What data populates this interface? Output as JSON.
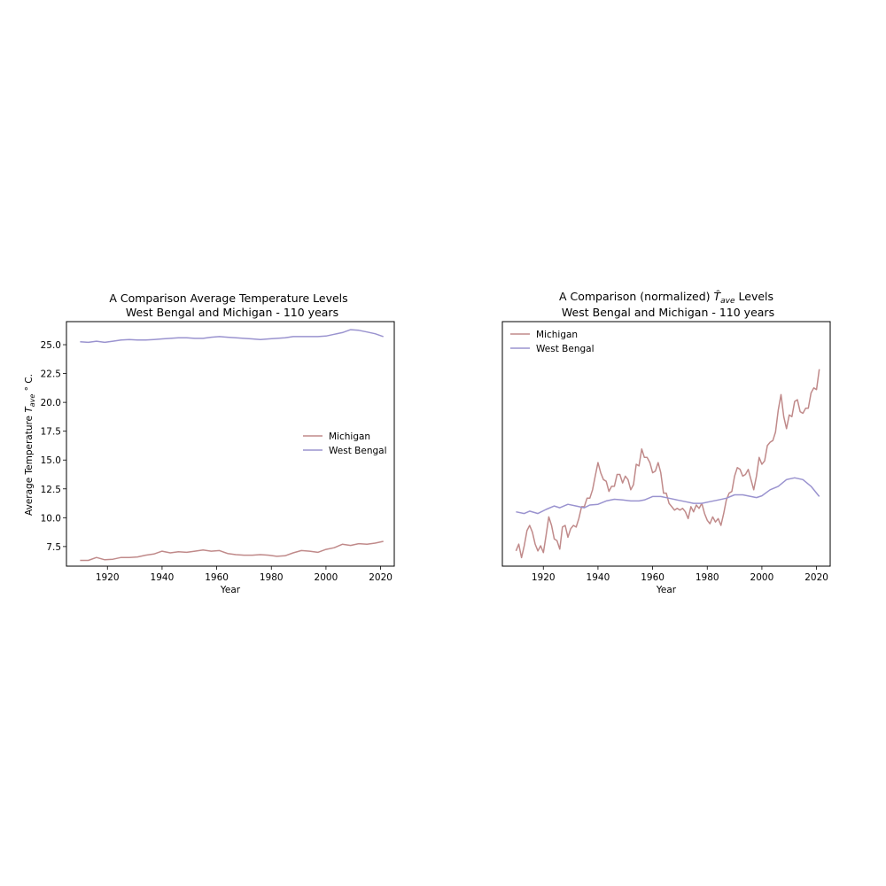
{
  "colors": {
    "michigan": "#c08a8a",
    "west_bengal": "#9a93cf"
  },
  "chart_data": [
    {
      "type": "line",
      "title_line1": "A Comparison Average Temperature Levels",
      "title_line2": "West Bengal and Michigan - 110 years",
      "xlabel": "Year",
      "ylabel": "Average Temperature T_ave ° C.",
      "ylabel_prefix": "Average Temperature ",
      "ylabel_symbol": "T",
      "ylabel_sub": "ave",
      "ylabel_suffix": " ° C.",
      "xlim": [
        1905,
        2025
      ],
      "ylim": [
        5.8,
        27.0
      ],
      "xticks": [
        1920,
        1940,
        1960,
        1980,
        2000,
        2020
      ],
      "xtick_labels": [
        "1920",
        "1940",
        "1960",
        "1980",
        "2000",
        "2020"
      ],
      "yticks": [
        7.5,
        10.0,
        12.5,
        15.0,
        17.5,
        20.0,
        22.5,
        25.0
      ],
      "ytick_labels": [
        "7.5",
        "10.0",
        "12.5",
        "15.0",
        "17.5",
        "20.0",
        "22.5",
        "25.0"
      ],
      "legend_position": "center-right",
      "series": [
        {
          "name": "Michigan",
          "color_key": "michigan",
          "points": [
            [
              1910,
              6.3
            ],
            [
              1913,
              6.3
            ],
            [
              1916,
              6.55
            ],
            [
              1919,
              6.35
            ],
            [
              1922,
              6.4
            ],
            [
              1925,
              6.55
            ],
            [
              1928,
              6.55
            ],
            [
              1931,
              6.6
            ],
            [
              1934,
              6.75
            ],
            [
              1937,
              6.85
            ],
            [
              1940,
              7.1
            ],
            [
              1943,
              6.95
            ],
            [
              1946,
              7.05
            ],
            [
              1949,
              7.0
            ],
            [
              1952,
              7.1
            ],
            [
              1955,
              7.2
            ],
            [
              1958,
              7.1
            ],
            [
              1961,
              7.15
            ],
            [
              1964,
              6.9
            ],
            [
              1967,
              6.8
            ],
            [
              1970,
              6.75
            ],
            [
              1973,
              6.75
            ],
            [
              1976,
              6.8
            ],
            [
              1979,
              6.75
            ],
            [
              1982,
              6.65
            ],
            [
              1985,
              6.7
            ],
            [
              1988,
              6.95
            ],
            [
              1991,
              7.15
            ],
            [
              1994,
              7.1
            ],
            [
              1997,
              7.0
            ],
            [
              2000,
              7.25
            ],
            [
              2003,
              7.4
            ],
            [
              2006,
              7.7
            ],
            [
              2009,
              7.6
            ],
            [
              2012,
              7.75
            ],
            [
              2015,
              7.7
            ],
            [
              2018,
              7.8
            ],
            [
              2021,
              7.95
            ]
          ]
        },
        {
          "name": "West Bengal",
          "color_key": "west_bengal",
          "points": [
            [
              1910,
              25.25
            ],
            [
              1913,
              25.2
            ],
            [
              1916,
              25.3
            ],
            [
              1919,
              25.2
            ],
            [
              1922,
              25.3
            ],
            [
              1925,
              25.4
            ],
            [
              1928,
              25.45
            ],
            [
              1931,
              25.4
            ],
            [
              1934,
              25.4
            ],
            [
              1937,
              25.45
            ],
            [
              1940,
              25.5
            ],
            [
              1943,
              25.55
            ],
            [
              1946,
              25.6
            ],
            [
              1949,
              25.6
            ],
            [
              1952,
              25.55
            ],
            [
              1955,
              25.55
            ],
            [
              1958,
              25.65
            ],
            [
              1961,
              25.7
            ],
            [
              1964,
              25.65
            ],
            [
              1967,
              25.6
            ],
            [
              1970,
              25.55
            ],
            [
              1973,
              25.5
            ],
            [
              1976,
              25.45
            ],
            [
              1979,
              25.5
            ],
            [
              1982,
              25.55
            ],
            [
              1985,
              25.6
            ],
            [
              1988,
              25.7
            ],
            [
              1991,
              25.7
            ],
            [
              1994,
              25.7
            ],
            [
              1997,
              25.7
            ],
            [
              2000,
              25.75
            ],
            [
              2003,
              25.9
            ],
            [
              2006,
              26.05
            ],
            [
              2009,
              26.3
            ],
            [
              2012,
              26.25
            ],
            [
              2015,
              26.1
            ],
            [
              2018,
              25.95
            ],
            [
              2021,
              25.7
            ]
          ]
        }
      ]
    },
    {
      "type": "line",
      "title_line1_prefix": "A Comparison (normalized) ",
      "title_line1_symbol": "T̂",
      "title_line1_sub": "ave",
      "title_line1_suffix": " Levels",
      "title_line2": "West Bengal and Michigan - 110 years",
      "xlabel": "Year",
      "xlim": [
        1905,
        2025
      ],
      "ylim": [
        -3.1,
        4.1
      ],
      "xticks": [
        1920,
        1940,
        1960,
        1980,
        2000,
        2020
      ],
      "xtick_labels": [
        "1920",
        "1940",
        "1960",
        "1980",
        "2000",
        "2020"
      ],
      "yticks": [],
      "legend_position": "top-left",
      "series": [
        {
          "name": "Michigan",
          "color_key": "michigan",
          "points": [
            [
              1910,
              -2.65
            ],
            [
              1911,
              -2.45
            ],
            [
              1912,
              -2.85
            ],
            [
              1913,
              -2.5
            ],
            [
              1914,
              -2.05
            ],
            [
              1915,
              -1.9
            ],
            [
              1916,
              -2.1
            ],
            [
              1917,
              -2.45
            ],
            [
              1918,
              -2.65
            ],
            [
              1919,
              -2.5
            ],
            [
              1920,
              -2.7
            ],
            [
              1921,
              -2.2
            ],
            [
              1922,
              -1.65
            ],
            [
              1923,
              -1.9
            ],
            [
              1924,
              -2.3
            ],
            [
              1925,
              -2.35
            ],
            [
              1926,
              -2.6
            ],
            [
              1927,
              -1.95
            ],
            [
              1928,
              -1.9
            ],
            [
              1929,
              -2.25
            ],
            [
              1930,
              -2.0
            ],
            [
              1931,
              -1.9
            ],
            [
              1932,
              -1.95
            ],
            [
              1933,
              -1.7
            ],
            [
              1934,
              -1.35
            ],
            [
              1935,
              -1.35
            ],
            [
              1936,
              -1.1
            ],
            [
              1937,
              -1.1
            ],
            [
              1938,
              -0.85
            ],
            [
              1939,
              -0.45
            ],
            [
              1940,
              -0.05
            ],
            [
              1941,
              -0.35
            ],
            [
              1942,
              -0.55
            ],
            [
              1943,
              -0.6
            ],
            [
              1944,
              -0.9
            ],
            [
              1945,
              -0.75
            ],
            [
              1946,
              -0.75
            ],
            [
              1947,
              -0.4
            ],
            [
              1948,
              -0.4
            ],
            [
              1949,
              -0.65
            ],
            [
              1950,
              -0.45
            ],
            [
              1951,
              -0.55
            ],
            [
              1952,
              -0.85
            ],
            [
              1953,
              -0.7
            ],
            [
              1954,
              -0.1
            ],
            [
              1955,
              -0.15
            ],
            [
              1956,
              0.35
            ],
            [
              1957,
              0.1
            ],
            [
              1958,
              0.1
            ],
            [
              1959,
              -0.05
            ],
            [
              1960,
              -0.35
            ],
            [
              1961,
              -0.3
            ],
            [
              1962,
              -0.05
            ],
            [
              1963,
              -0.35
            ],
            [
              1964,
              -0.95
            ],
            [
              1965,
              -0.95
            ],
            [
              1966,
              -1.25
            ],
            [
              1967,
              -1.35
            ],
            [
              1968,
              -1.45
            ],
            [
              1969,
              -1.4
            ],
            [
              1970,
              -1.45
            ],
            [
              1971,
              -1.4
            ],
            [
              1972,
              -1.5
            ],
            [
              1973,
              -1.7
            ],
            [
              1974,
              -1.35
            ],
            [
              1975,
              -1.5
            ],
            [
              1976,
              -1.3
            ],
            [
              1977,
              -1.4
            ],
            [
              1978,
              -1.25
            ],
            [
              1979,
              -1.55
            ],
            [
              1980,
              -1.75
            ],
            [
              1981,
              -1.85
            ],
            [
              1982,
              -1.65
            ],
            [
              1983,
              -1.8
            ],
            [
              1984,
              -1.7
            ],
            [
              1985,
              -1.9
            ],
            [
              1986,
              -1.55
            ],
            [
              1987,
              -1.15
            ],
            [
              1988,
              -0.95
            ],
            [
              1989,
              -0.9
            ],
            [
              1990,
              -0.45
            ],
            [
              1991,
              -0.2
            ],
            [
              1992,
              -0.25
            ],
            [
              1993,
              -0.45
            ],
            [
              1994,
              -0.4
            ],
            [
              1995,
              -0.25
            ],
            [
              1996,
              -0.55
            ],
            [
              1997,
              -0.85
            ],
            [
              1998,
              -0.45
            ],
            [
              1999,
              0.1
            ],
            [
              2000,
              -0.1
            ],
            [
              2001,
              0.0
            ],
            [
              2002,
              0.45
            ],
            [
              2003,
              0.55
            ],
            [
              2004,
              0.6
            ],
            [
              2005,
              0.85
            ],
            [
              2006,
              1.5
            ],
            [
              2007,
              1.95
            ],
            [
              2008,
              1.3
            ],
            [
              2009,
              0.95
            ],
            [
              2010,
              1.35
            ],
            [
              2011,
              1.3
            ],
            [
              2012,
              1.75
            ],
            [
              2013,
              1.8
            ],
            [
              2014,
              1.45
            ],
            [
              2015,
              1.4
            ],
            [
              2016,
              1.55
            ],
            [
              2017,
              1.55
            ],
            [
              2018,
              2.0
            ],
            [
              2019,
              2.15
            ],
            [
              2020,
              2.1
            ],
            [
              2021,
              2.7
            ]
          ]
        },
        {
          "name": "West Bengal",
          "color_key": "west_bengal",
          "points": [
            [
              1910,
              -1.5
            ],
            [
              1913,
              -1.55
            ],
            [
              1915,
              -1.48
            ],
            [
              1918,
              -1.55
            ],
            [
              1921,
              -1.43
            ],
            [
              1924,
              -1.33
            ],
            [
              1926,
              -1.38
            ],
            [
              1929,
              -1.28
            ],
            [
              1932,
              -1.33
            ],
            [
              1935,
              -1.38
            ],
            [
              1937,
              -1.3
            ],
            [
              1940,
              -1.28
            ],
            [
              1943,
              -1.18
            ],
            [
              1946,
              -1.13
            ],
            [
              1949,
              -1.15
            ],
            [
              1952,
              -1.18
            ],
            [
              1955,
              -1.18
            ],
            [
              1957,
              -1.15
            ],
            [
              1960,
              -1.05
            ],
            [
              1963,
              -1.05
            ],
            [
              1966,
              -1.1
            ],
            [
              1969,
              -1.15
            ],
            [
              1972,
              -1.2
            ],
            [
              1975,
              -1.25
            ],
            [
              1978,
              -1.25
            ],
            [
              1981,
              -1.2
            ],
            [
              1984,
              -1.15
            ],
            [
              1987,
              -1.1
            ],
            [
              1990,
              -1.0
            ],
            [
              1993,
              -1.0
            ],
            [
              1996,
              -1.05
            ],
            [
              1998,
              -1.08
            ],
            [
              2000,
              -1.03
            ],
            [
              2003,
              -0.85
            ],
            [
              2006,
              -0.75
            ],
            [
              2009,
              -0.55
            ],
            [
              2012,
              -0.5
            ],
            [
              2015,
              -0.55
            ],
            [
              2018,
              -0.75
            ],
            [
              2021,
              -1.05
            ]
          ]
        }
      ]
    }
  ]
}
